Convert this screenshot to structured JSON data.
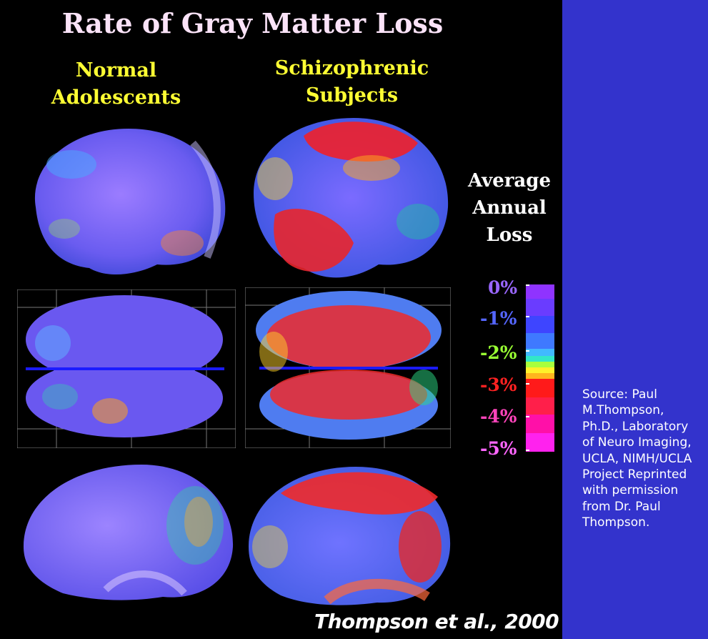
{
  "title": "Rate of Gray Matter Loss",
  "columns": {
    "normal_line1": "Normal",
    "normal_line2": "Adolescents",
    "schizo_line1": "Schizophrenic",
    "schizo_line2": "Subjects"
  },
  "legend": {
    "heading_line1": "Average",
    "heading_line2": "Annual",
    "heading_line3": "Loss",
    "ticks": [
      "0%",
      "-1%",
      "-2%",
      "-3%",
      "-4%",
      "-5%"
    ],
    "tick_colors": [
      "#9966ff",
      "#5566ff",
      "#99ff33",
      "#ff2222",
      "#ff44bb",
      "#ff66ff"
    ]
  },
  "citation": "Thompson et al., 2000",
  "source_note": "Source: Paul M.Thompson, Ph.D., Laboratory of Neuro Imaging, UCLA, NIMH/UCLA Project Reprinted with permission from Dr. Paul Thompson.",
  "colors": {
    "sidebar": "#3333cc",
    "background": "#000000"
  }
}
